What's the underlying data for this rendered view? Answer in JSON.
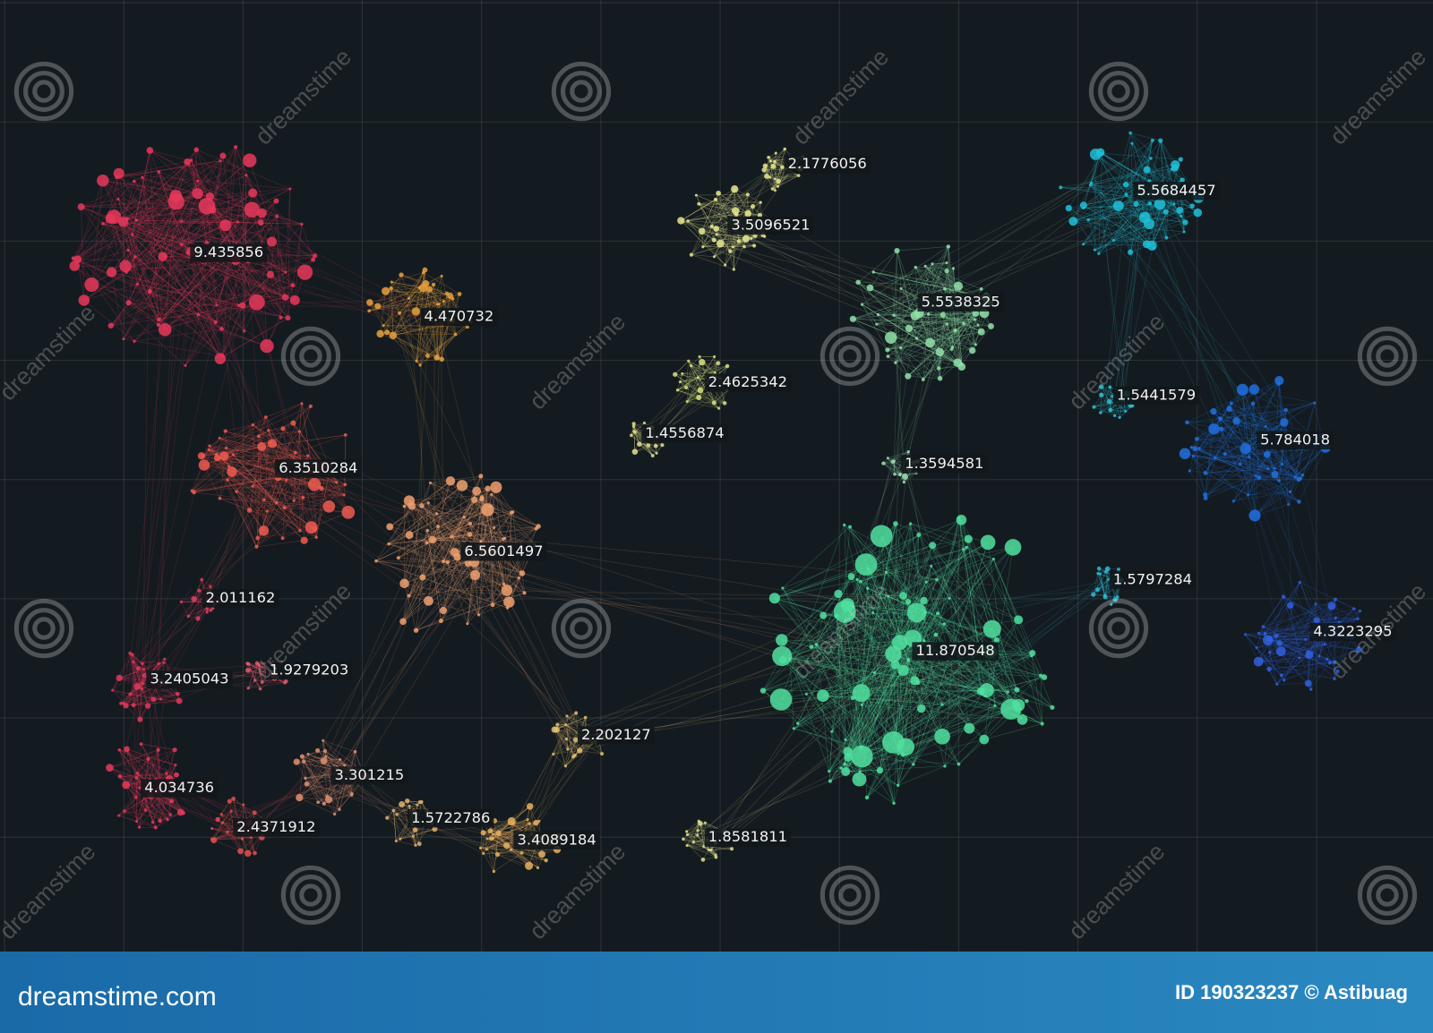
{
  "nodes": [
    {
      "label": "9.435856",
      "color": "#e8375a"
    },
    {
      "label": "4.470732",
      "color": "#e8a040"
    },
    {
      "label": "6.3510284",
      "color": "#f05a50"
    },
    {
      "label": "6.5601497",
      "color": "#f0a070"
    },
    {
      "label": "2.011162",
      "color": "#e04060"
    },
    {
      "label": "3.2405043",
      "color": "#e03858"
    },
    {
      "label": "1.9279203",
      "color": "#e05a6a"
    },
    {
      "label": "4.034736",
      "color": "#e83a5a"
    },
    {
      "label": "2.4371912",
      "color": "#e05050"
    },
    {
      "label": "3.301215",
      "color": "#e09070"
    },
    {
      "label": "1.5722786",
      "color": "#e0b070"
    },
    {
      "label": "3.4089184",
      "color": "#e8b060"
    },
    {
      "label": "2.202127",
      "color": "#e0c070"
    },
    {
      "label": "1.8581811",
      "color": "#e0e090"
    },
    {
      "label": "2.1776056",
      "color": "#e8e890"
    },
    {
      "label": "3.5096521",
      "color": "#e8e890"
    },
    {
      "label": "2.4625342",
      "color": "#d8e080"
    },
    {
      "label": "1.4556874",
      "color": "#e0e090"
    },
    {
      "label": "5.5538325",
      "color": "#90e0a8"
    },
    {
      "label": "1.3594581",
      "color": "#a0e0b0"
    },
    {
      "label": "11.870548",
      "color": "#50e0a0"
    },
    {
      "label": "5.5684457",
      "color": "#20c0d8"
    },
    {
      "label": "1.5441579",
      "color": "#30c0d0"
    },
    {
      "label": "5.784018",
      "color": "#2070e0"
    },
    {
      "label": "1.5797284",
      "color": "#30b8d0"
    },
    {
      "label": "4.3223295",
      "color": "#3060e0"
    }
  ],
  "watermark": "dreamstime",
  "footer": {
    "site": "dreamstime.com",
    "credit": "ID 190323237 © Astibuag"
  }
}
